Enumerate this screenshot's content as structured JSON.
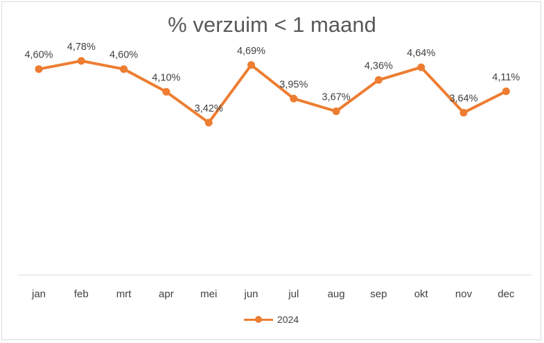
{
  "chart_data": {
    "type": "line",
    "title": "% verzuim < 1 maand",
    "categories": [
      "jan",
      "feb",
      "mrt",
      "apr",
      "mei",
      "jun",
      "jul",
      "aug",
      "sep",
      "okt",
      "nov",
      "dec"
    ],
    "series": [
      {
        "name": "2024",
        "values": [
          4.6,
          4.78,
          4.6,
          4.1,
          3.42,
          4.69,
          3.95,
          3.67,
          4.36,
          4.64,
          3.64,
          4.11
        ],
        "labels": [
          "4,60%",
          "4,78%",
          "4,60%",
          "4,10%",
          "3,42%",
          "4,69%",
          "3,95%",
          "3,67%",
          "4,36%",
          "4,64%",
          "3,64%",
          "4,11%"
        ]
      }
    ],
    "ylim": [
      0,
      6
    ],
    "grid": false,
    "legend": "bottom",
    "colors": {
      "series": "#ED7D31",
      "axis": "#d9d9d9",
      "text": "#404040",
      "title": "#595959"
    }
  }
}
